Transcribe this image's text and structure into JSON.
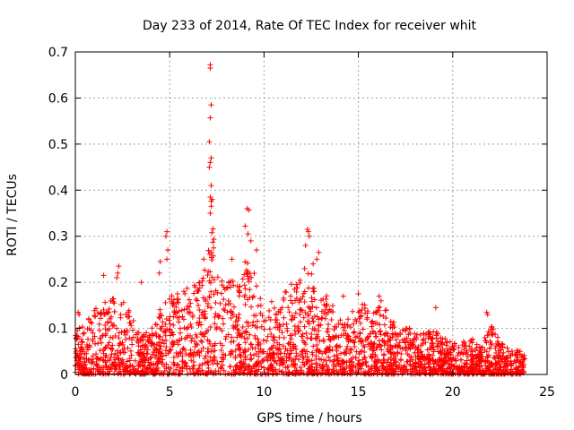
{
  "chart_data": {
    "type": "scatter",
    "title": "Day 233 of 2014, Rate Of TEC Index for receiver whit",
    "xlabel": "GPS time / hours",
    "ylabel": "ROTI / TECUs",
    "xlim": [
      0,
      25
    ],
    "ylim": [
      0,
      0.7
    ],
    "x_ticks": [
      0,
      5,
      10,
      15,
      20,
      25
    ],
    "y_ticks": [
      0,
      0.1,
      0.2,
      0.3,
      0.4,
      0.5,
      0.6,
      0.7
    ],
    "grid": true,
    "marker": "+",
    "marker_color": "#ff0000",
    "x_range_data": [
      0,
      23.8
    ],
    "series": [
      {
        "envelope_x": [
          0,
          0.5,
          1,
          1.5,
          2,
          2.5,
          3,
          3.5,
          4,
          4.5,
          5,
          5.5,
          6,
          6.5,
          7,
          7.2,
          7.5,
          8,
          8.5,
          9,
          9.5,
          10,
          10.5,
          11,
          11.5,
          12,
          12.5,
          13,
          13.5,
          14,
          14.5,
          15,
          15.5,
          16,
          16.5,
          17,
          17.5,
          18,
          18.5,
          19,
          19.5,
          20,
          20.5,
          21,
          21.5,
          22,
          22.5,
          23,
          23.5,
          23.8
        ],
        "envelope_y": [
          0.1,
          0.11,
          0.14,
          0.16,
          0.17,
          0.16,
          0.13,
          0.08,
          0.11,
          0.15,
          0.17,
          0.18,
          0.19,
          0.2,
          0.25,
          0.38,
          0.22,
          0.2,
          0.21,
          0.25,
          0.22,
          0.14,
          0.17,
          0.19,
          0.2,
          0.24,
          0.22,
          0.19,
          0.16,
          0.14,
          0.13,
          0.15,
          0.16,
          0.15,
          0.14,
          0.12,
          0.11,
          0.09,
          0.09,
          0.1,
          0.08,
          0.07,
          0.07,
          0.08,
          0.06,
          0.12,
          0.07,
          0.06,
          0.06,
          0.05
        ]
      }
    ],
    "outliers": [
      {
        "x": 7.15,
        "y": 0.672
      },
      {
        "x": 7.15,
        "y": 0.665
      },
      {
        "x": 7.2,
        "y": 0.585
      },
      {
        "x": 7.15,
        "y": 0.557
      },
      {
        "x": 7.1,
        "y": 0.505
      },
      {
        "x": 7.2,
        "y": 0.47
      },
      {
        "x": 7.15,
        "y": 0.46
      },
      {
        "x": 7.1,
        "y": 0.45
      },
      {
        "x": 7.2,
        "y": 0.41
      },
      {
        "x": 7.15,
        "y": 0.385
      },
      {
        "x": 7.25,
        "y": 0.38
      },
      {
        "x": 7.2,
        "y": 0.365
      },
      {
        "x": 7.15,
        "y": 0.35
      },
      {
        "x": 9.1,
        "y": 0.36
      },
      {
        "x": 9.2,
        "y": 0.357
      },
      {
        "x": 9.0,
        "y": 0.322
      },
      {
        "x": 9.15,
        "y": 0.305
      },
      {
        "x": 9.3,
        "y": 0.29
      },
      {
        "x": 9.6,
        "y": 0.27
      },
      {
        "x": 4.85,
        "y": 0.31
      },
      {
        "x": 4.8,
        "y": 0.3
      },
      {
        "x": 4.9,
        "y": 0.27
      },
      {
        "x": 4.85,
        "y": 0.25
      },
      {
        "x": 4.5,
        "y": 0.245
      },
      {
        "x": 4.45,
        "y": 0.22
      },
      {
        "x": 12.3,
        "y": 0.315
      },
      {
        "x": 12.35,
        "y": 0.31
      },
      {
        "x": 12.4,
        "y": 0.3
      },
      {
        "x": 12.2,
        "y": 0.28
      },
      {
        "x": 12.9,
        "y": 0.265
      },
      {
        "x": 12.8,
        "y": 0.25
      },
      {
        "x": 12.6,
        "y": 0.24
      },
      {
        "x": 2.3,
        "y": 0.235
      },
      {
        "x": 2.25,
        "y": 0.22
      },
      {
        "x": 2.2,
        "y": 0.21
      },
      {
        "x": 1.5,
        "y": 0.215
      },
      {
        "x": 3.5,
        "y": 0.2
      },
      {
        "x": 8.3,
        "y": 0.25
      },
      {
        "x": 6.8,
        "y": 0.25
      },
      {
        "x": 19.1,
        "y": 0.145
      },
      {
        "x": 21.8,
        "y": 0.135
      },
      {
        "x": 21.85,
        "y": 0.13
      },
      {
        "x": 15.0,
        "y": 0.175
      },
      {
        "x": 16.1,
        "y": 0.17
      },
      {
        "x": 16.2,
        "y": 0.16
      },
      {
        "x": 14.2,
        "y": 0.17
      },
      {
        "x": 0.2,
        "y": 0.13
      },
      {
        "x": 0.15,
        "y": 0.135
      }
    ]
  }
}
